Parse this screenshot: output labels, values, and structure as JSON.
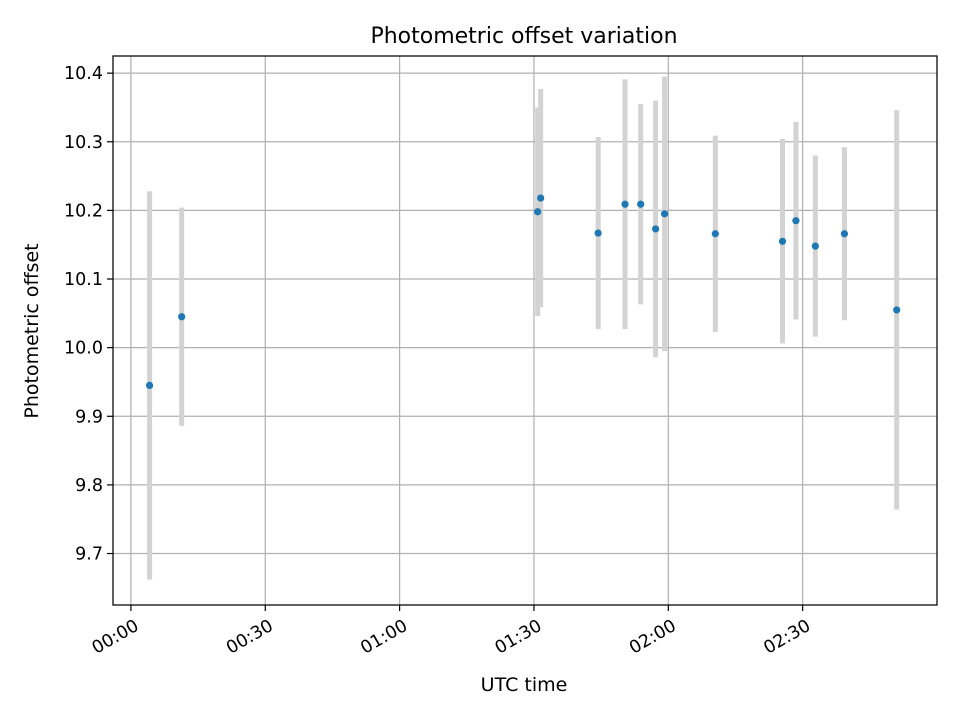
{
  "chart_data": {
    "type": "scatter",
    "title": "Photometric offset variation",
    "xlabel": "UTC time",
    "ylabel": "Photometric offset",
    "x_is_time": true,
    "xlim": [
      "23:56",
      "03:00"
    ],
    "ylim": [
      9.625,
      10.425
    ],
    "x_ticks": [
      "00:00",
      "00:30",
      "01:00",
      "01:30",
      "02:00",
      "02:30"
    ],
    "y_ticks": [
      "9.7",
      "9.8",
      "9.9",
      "10.0",
      "10.1",
      "10.2",
      "10.3",
      "10.4"
    ],
    "grid": true,
    "colors": {
      "point": "#1f77b4",
      "errorbar": "#d3d3d3",
      "grid": "#b0b0b0",
      "axes": "#000000"
    },
    "series": [
      {
        "points": [
          {
            "x": "00:04:10",
            "y": 9.945,
            "err": 0.283
          },
          {
            "x": "00:11:20",
            "y": 10.045,
            "err": 0.159
          },
          {
            "x": "01:30:50",
            "y": 10.198,
            "err": 0.152
          },
          {
            "x": "01:31:30",
            "y": 10.218,
            "err": 0.159
          },
          {
            "x": "01:44:20",
            "y": 10.167,
            "err": 0.14
          },
          {
            "x": "01:50:20",
            "y": 10.209,
            "err": 0.182
          },
          {
            "x": "01:53:50",
            "y": 10.209,
            "err": 0.146
          },
          {
            "x": "01:57:10",
            "y": 10.173,
            "err": 0.187
          },
          {
            "x": "01:59:10",
            "y": 10.195,
            "err": 0.2
          },
          {
            "x": "02:10:30",
            "y": 10.166,
            "err": 0.143
          },
          {
            "x": "02:25:30",
            "y": 10.155,
            "err": 0.149
          },
          {
            "x": "02:28:30",
            "y": 10.185,
            "err": 0.144
          },
          {
            "x": "02:32:50",
            "y": 10.148,
            "err": 0.132
          },
          {
            "x": "02:39:20",
            "y": 10.166,
            "err": 0.126
          },
          {
            "x": "02:51:00",
            "y": 10.055,
            "err": 0.291
          }
        ]
      }
    ]
  }
}
